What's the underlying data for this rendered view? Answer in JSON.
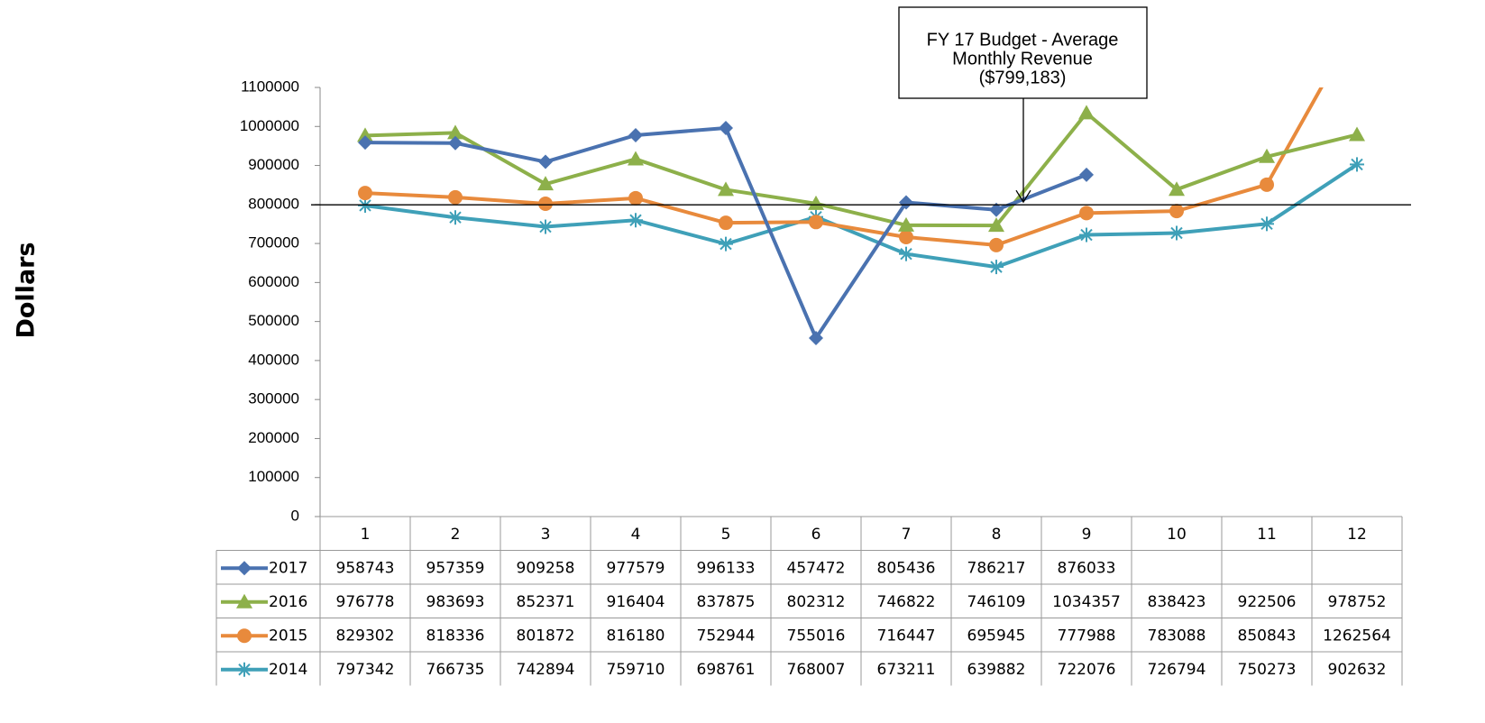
{
  "chart_data": {
    "type": "line",
    "y_label": "Dollars",
    "annotation": [
      "FY 17 Budget - Average",
      "Monthly Revenue",
      "($799,183)"
    ],
    "reference_value": 799183,
    "categories": [
      "1",
      "2",
      "3",
      "4",
      "5",
      "6",
      "7",
      "8",
      "9",
      "10",
      "11",
      "12"
    ],
    "series": [
      {
        "name": "2017",
        "color": "#4a72b0",
        "marker": "diamond",
        "values": [
          958743,
          957359,
          909258,
          977579,
          996133,
          457472,
          805436,
          786217,
          876033,
          null,
          null,
          null
        ]
      },
      {
        "name": "2016",
        "color": "#8db04a",
        "marker": "triangle",
        "values": [
          976778,
          983693,
          852371,
          916404,
          837875,
          802312,
          746822,
          746109,
          1034357,
          838423,
          922506,
          978752
        ]
      },
      {
        "name": "2015",
        "color": "#e88a3c",
        "marker": "circle",
        "values": [
          829302,
          818336,
          801872,
          816180,
          752944,
          755016,
          716447,
          695945,
          777988,
          783088,
          850843,
          1262564
        ]
      },
      {
        "name": "2014",
        "color": "#3fa0b8",
        "marker": "star",
        "values": [
          797342,
          766735,
          742894,
          759710,
          698761,
          768007,
          673211,
          639882,
          722076,
          726794,
          750273,
          902632
        ]
      }
    ],
    "ylim": [
      0,
      1100000
    ],
    "yticks": [
      0,
      100000,
      200000,
      300000,
      400000,
      500000,
      600000,
      700000,
      800000,
      900000,
      1000000,
      1100000
    ],
    "data_table": true
  }
}
